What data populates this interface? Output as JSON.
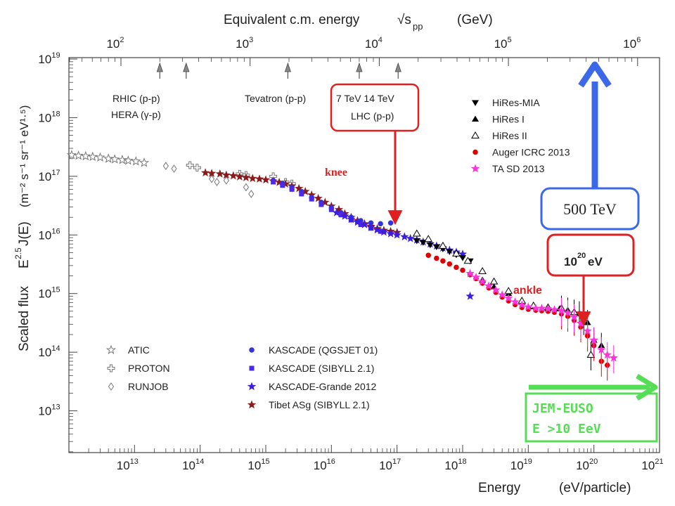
{
  "chart_data": {
    "type": "scatter",
    "x_axis": {
      "label": "Energy",
      "unit": "(eV/particle)",
      "scale": "log",
      "range": [
        1000000000000.0,
        1e+21
      ],
      "tick_exponents": [
        13,
        14,
        15,
        16,
        17,
        18,
        19,
        20,
        21
      ]
    },
    "x_top_axis": {
      "label": "Equivalent c.m. energy",
      "sqrt_symbol": "√s",
      "sub": "pp",
      "unit": "(GeV)",
      "scale": "log",
      "tick_exponents": [
        2,
        3,
        4,
        5,
        6
      ]
    },
    "y_axis": {
      "label": "Scaled flux",
      "formula_prefix": "E",
      "formula_exp": "2.5",
      "formula_mid": " J(E)",
      "unit_text": "(m⁻² s⁻¹ sr⁻¹ eV¹·⁵)",
      "scale": "log",
      "range": [
        1000000000000.0,
        1e+19
      ],
      "tick_exponents": [
        13,
        14,
        15,
        16,
        17,
        18,
        19
      ]
    },
    "tick_base": "10",
    "accelerators": [
      {
        "name": "RHIC (p-p)",
        "sqrt_s_gev": 200
      },
      {
        "name": "HERA (γ-p)",
        "sqrt_s_gev": 320
      },
      {
        "name": "Tevatron (p-p)",
        "sqrt_s_gev": 1960
      },
      {
        "name": "7 TeV",
        "sqrt_s_gev": 7000
      },
      {
        "name": "14 TeV",
        "sqrt_s_gev": 14000
      }
    ],
    "accel_labels": {
      "rhic": "RHIC (p-p)",
      "hera": "HERA (γ-p)",
      "tevatron": "Tevatron (p-p)",
      "lhc_line1": "7 TeV 14 TeV",
      "lhc_line2": "LHC (p-p)"
    },
    "legend_right": [
      "HiRes-MIA",
      "HiRes I",
      "HiRes II",
      "Auger ICRC 2013",
      "TA SD 2013"
    ],
    "legend_left_a": [
      "ATIC",
      "PROTON",
      "RUNJOB"
    ],
    "legend_left_b": [
      "KASCADE (QGSJET 01)",
      "KASCADE (SIBYLL 2.1)",
      "KASCADE-Grande 2012",
      "Tibet ASg (SIBYLL 2.1)"
    ],
    "annotations": {
      "knee": "knee",
      "ankle": "ankle",
      "box_500": "500 TeV",
      "box_1e20_base": "10",
      "box_1e20_exp": "20",
      "box_1e20_unit": " eV",
      "jem_line1": "JEM-EUSO",
      "jem_line2": "E >10 EeV"
    },
    "series": [
      {
        "name": "ATIC",
        "marker": "open-star",
        "color": "#777777",
        "points": [
          [
            1100000000000.0,
            2.3e+17
          ],
          [
            1400000000000.0,
            2.25e+17
          ],
          [
            1800000000000.0,
            2.2e+17
          ],
          [
            2300000000000.0,
            2.15e+17
          ],
          [
            3000000000000.0,
            2.1e+17
          ],
          [
            4000000000000.0,
            2e+17
          ],
          [
            5000000000000.0,
            1.95e+17
          ],
          [
            6500000000000.0,
            1.9e+17
          ],
          [
            8000000000000.0,
            1.85e+17
          ],
          [
            10500000000000.0,
            1.8e+17
          ],
          [
            14000000000000.0,
            1.7e+17
          ]
        ]
      },
      {
        "name": "PROTON",
        "marker": "open-cross",
        "color": "#777777",
        "points": [
          [
            70000000000000.0,
            1.55e+17
          ],
          [
            90000000000000.0,
            1.4e+17
          ],
          [
            400000000000000.0,
            1.1e+17
          ],
          [
            500000000000000.0,
            1.05e+17
          ],
          [
            1300000000000000.0,
            1e+17
          ],
          [
            2000000000000000.0,
            8e+16
          ],
          [
            2500000000000000.0,
            7.5e+16
          ]
        ]
      },
      {
        "name": "RUNJOB",
        "marker": "open-diamond",
        "color": "#777777",
        "points": [
          [
            30000000000000.0,
            1.5e+17
          ],
          [
            40000000000000.0,
            1.35e+17
          ],
          [
            150000000000000.0,
            9e+16
          ],
          [
            180000000000000.0,
            8e+16
          ],
          [
            250000000000000.0,
            8.5e+16
          ],
          [
            500000000000000.0,
            6.5e+16
          ],
          [
            600000000000000.0,
            5e+16
          ]
        ]
      },
      {
        "name": "Tibet ASg (SIBYLL 2.1)",
        "marker": "filled-star",
        "color": "#8b1a1a",
        "points": [
          [
            120000000000000.0,
            1.15e+17
          ],
          [
            150000000000000.0,
            1.12e+17
          ],
          [
            200000000000000.0,
            1.1e+17
          ],
          [
            250000000000000.0,
            1.05e+17
          ],
          [
            320000000000000.0,
            1.02e+17
          ],
          [
            400000000000000.0,
            9.8e+16
          ],
          [
            500000000000000.0,
            9.5e+16
          ],
          [
            630000000000000.0,
            9.2e+16
          ],
          [
            800000000000000.0,
            9e+16
          ],
          [
            1000000000000000.0,
            8.7e+16
          ],
          [
            1300000000000000.0,
            8.3e+16
          ],
          [
            1600000000000000.0,
            7.9e+16
          ],
          [
            2000000000000000.0,
            7.4e+16
          ],
          [
            2500000000000000.0,
            6.8e+16
          ],
          [
            3200000000000000.0,
            6.2e+16
          ],
          [
            4000000000000000.0,
            5.5e+16
          ],
          [
            5000000000000000.0,
            4.8e+16
          ],
          [
            6300000000000000.0,
            4.2e+16
          ],
          [
            8000000000000000.0,
            3.6e+16
          ],
          [
            1e+16,
            3.1e+16
          ],
          [
            1.3e+16,
            2.7e+16
          ],
          [
            1.6e+16,
            2.3e+16
          ],
          [
            2e+16,
            2e+16
          ],
          [
            2.5e+16,
            1.75e+16
          ],
          [
            3.2e+16,
            1.55e+16
          ],
          [
            4e+16,
            1.4e+16
          ],
          [
            5e+16,
            1.28e+16
          ],
          [
            6.3e+16,
            1.2e+16
          ],
          [
            8e+16,
            1.15e+16
          ],
          [
            1e+17,
            1.1e+16
          ]
        ]
      },
      {
        "name": "KASCADE (QGSJET 01)",
        "marker": "circle",
        "color": "#3333dd",
        "points": [
          [
            1300000000000000.0,
            8.5e+16
          ],
          [
            1800000000000000.0,
            7.5e+16
          ],
          [
            2500000000000000.0,
            6.5e+16
          ],
          [
            3500000000000000.0,
            5.5e+16
          ],
          [
            5000000000000000.0,
            4.4e+16
          ],
          [
            7000000000000000.0,
            3.6e+16
          ],
          [
            1e+16,
            2.9e+16
          ],
          [
            1.4e+16,
            2.4e+16
          ],
          [
            2e+16,
            2e+16
          ],
          [
            2.8e+16,
            1.75e+16
          ],
          [
            4e+16,
            1.6e+16
          ],
          [
            5.6e+16,
            1.55e+16
          ],
          [
            8e+16,
            1.6e+16
          ]
        ]
      },
      {
        "name": "KASCADE (SIBYLL 2.1)",
        "marker": "square",
        "color": "#4a2ae8",
        "points": [
          [
            1300000000000000.0,
            8e+16
          ],
          [
            1800000000000000.0,
            7e+16
          ],
          [
            2500000000000000.0,
            6e+16
          ],
          [
            3500000000000000.0,
            5e+16
          ],
          [
            5000000000000000.0,
            4.1e+16
          ],
          [
            7000000000000000.0,
            3.3e+16
          ],
          [
            1e+16,
            2.7e+16
          ],
          [
            1.4e+16,
            2.2e+16
          ],
          [
            2e+16,
            1.8e+16
          ],
          [
            2.8e+16,
            1.5e+16
          ],
          [
            4e+16,
            1.3e+16
          ],
          [
            5.6e+16,
            1.15e+16
          ]
        ]
      },
      {
        "name": "KASCADE-Grande 2012",
        "marker": "filled-star",
        "color": "#3b1ee0",
        "points": [
          [
            1.2e+16,
            2.4e+16
          ],
          [
            1.6e+16,
            2.1e+16
          ],
          [
            2e+16,
            1.85e+16
          ],
          [
            2.5e+16,
            1.65e+16
          ],
          [
            3.2e+16,
            1.5e+16
          ],
          [
            4e+16,
            1.35e+16
          ],
          [
            5e+16,
            1.22e+16
          ],
          [
            6.3e+16,
            1.12e+16
          ],
          [
            8e+16,
            1.05e+16
          ],
          [
            1e+17,
            1e+16
          ],
          [
            1.3e+17,
            9300000000000000.0
          ],
          [
            1.6e+17,
            8700000000000000.0
          ],
          [
            2e+17,
            8200000000000000.0
          ],
          [
            2.5e+17,
            7600000000000000.0
          ],
          [
            3.2e+17,
            7000000000000000.0
          ],
          [
            4e+17,
            6500000000000000.0
          ],
          [
            5e+17,
            6000000000000000.0
          ],
          [
            6.3e+17,
            5500000000000000.0
          ],
          [
            8e+17,
            5100000000000000.0
          ],
          [
            1e+18,
            4700000000000000.0
          ],
          [
            1.3e+18,
            900000000000000.0
          ]
        ]
      },
      {
        "name": "HiRes-MIA",
        "marker": "triangle-down",
        "color": "#000000",
        "points": [
          [
            2e+17,
            8000000000000000.0
          ],
          [
            2.5e+17,
            7500000000000000.0
          ],
          [
            3.2e+17,
            6800000000000000.0
          ],
          [
            4e+17,
            6300000000000000.0
          ],
          [
            5e+17,
            5800000000000000.0
          ],
          [
            6.3e+17,
            5200000000000000.0
          ],
          [
            8e+17,
            4600000000000000.0
          ],
          [
            1e+18,
            4100000000000000.0
          ],
          [
            1.3e+18,
            3600000000000000.0
          ]
        ]
      },
      {
        "name": "HiRes I",
        "marker": "triangle-up",
        "color": "#000000",
        "points": [
          [
            2e+18,
            1700000000000000.0
          ],
          [
            3e+18,
            1300000000000000.0
          ],
          [
            5e+18,
            1000000000000000.0
          ],
          [
            8e+18,
            700000000000000.0
          ],
          [
            1.2e+19,
            600000000000000.0
          ],
          [
            2e+19,
            550000000000000.0
          ],
          [
            3e+19,
            550000000000000.0
          ],
          [
            4e+19,
            520000000000000.0
          ],
          [
            6e+19,
            450000000000000.0
          ],
          [
            8e+19,
            320000000000000.0
          ],
          [
            1e+20,
            160000000000000.0
          ],
          [
            1.3e+20,
            130000000000000.0
          ]
        ]
      },
      {
        "name": "HiRes II",
        "marker": "triangle-open",
        "color": "#000000",
        "points": [
          [
            2e+17,
            1.05e+16
          ],
          [
            3e+17,
            8500000000000000.0
          ],
          [
            5e+17,
            6500000000000000.0
          ],
          [
            8e+17,
            4800000000000000.0
          ],
          [
            1.2e+18,
            3600000000000000.0
          ],
          [
            2e+18,
            2400000000000000.0
          ],
          [
            3e+18,
            1600000000000000.0
          ],
          [
            5e+18,
            1100000000000000.0
          ],
          [
            8e+18,
            750000000000000.0
          ],
          [
            1.2e+19,
            620000000000000.0
          ],
          [
            2e+19,
            580000000000000.0
          ],
          [
            3.2e+19,
            560000000000000.0
          ],
          [
            5e+19,
            480000000000000.0
          ],
          [
            7e+19,
            360000000000000.0
          ],
          [
            9e+19,
            90000000000000.0
          ]
        ]
      },
      {
        "name": "Auger ICRC 2013",
        "marker": "circle",
        "color": "#e00000",
        "points": [
          [
            3e+17,
            4500000000000000.0
          ],
          [
            4e+17,
            4000000000000000.0
          ],
          [
            5e+17,
            3600000000000000.0
          ],
          [
            6.3e+17,
            3200000000000000.0
          ],
          [
            8e+17,
            2800000000000000.0
          ],
          [
            1e+18,
            2500000000000000.0
          ],
          [
            1.3e+18,
            2100000000000000.0
          ],
          [
            1.6e+18,
            1800000000000000.0
          ],
          [
            2e+18,
            1500000000000000.0
          ],
          [
            2.5e+18,
            1250000000000000.0
          ],
          [
            3.2e+18,
            1050000000000000.0
          ],
          [
            4e+18,
            870000000000000.0
          ],
          [
            5e+18,
            750000000000000.0
          ],
          [
            6.3e+18,
            650000000000000.0
          ],
          [
            8e+18,
            580000000000000.0
          ],
          [
            1e+19,
            540000000000000.0
          ],
          [
            1.3e+19,
            520000000000000.0
          ],
          [
            1.6e+19,
            510000000000000.0
          ],
          [
            2e+19,
            500000000000000.0
          ],
          [
            2.5e+19,
            480000000000000.0
          ],
          [
            3.2e+19,
            450000000000000.0
          ],
          [
            4e+19,
            410000000000000.0
          ],
          [
            5e+19,
            350000000000000.0
          ],
          [
            6.3e+19,
            270000000000000.0
          ],
          [
            8e+19,
            190000000000000.0
          ],
          [
            1e+20,
            130000000000000.0
          ],
          [
            1.3e+20,
            70000000000000.0
          ],
          [
            1.6e+20,
            60000000000000.0
          ]
        ]
      },
      {
        "name": "TA SD 2013",
        "marker": "filled-star",
        "color": "#ff33dd",
        "points": [
          [
            1.3e+18,
            2200000000000000.0
          ],
          [
            1.6e+18,
            1900000000000000.0
          ],
          [
            2e+18,
            1600000000000000.0
          ],
          [
            2.5e+18,
            1350000000000000.0
          ],
          [
            3.2e+18,
            1150000000000000.0
          ],
          [
            4e+18,
            950000000000000.0
          ],
          [
            5e+18,
            830000000000000.0
          ],
          [
            6.3e+18,
            720000000000000.0
          ],
          [
            8e+18,
            640000000000000.0
          ],
          [
            1e+19,
            590000000000000.0
          ],
          [
            1.3e+19,
            560000000000000.0
          ],
          [
            1.6e+19,
            560000000000000.0
          ],
          [
            2e+19,
            550000000000000.0
          ],
          [
            2.5e+19,
            530000000000000.0
          ],
          [
            3.2e+19,
            510000000000000.0
          ],
          [
            4e+19,
            470000000000000.0
          ],
          [
            5e+19,
            400000000000000.0
          ],
          [
            6.3e+19,
            310000000000000.0
          ],
          [
            8e+19,
            230000000000000.0
          ],
          [
            1e+20,
            160000000000000.0
          ],
          [
            1.3e+20,
            110000000000000.0
          ],
          [
            1.6e+20,
            90000000000000.0
          ],
          [
            2e+20,
            80000000000000.0
          ]
        ]
      }
    ]
  },
  "colors": {
    "red": "#e02020",
    "blue": "#3a68e8",
    "green": "#55dd55"
  }
}
